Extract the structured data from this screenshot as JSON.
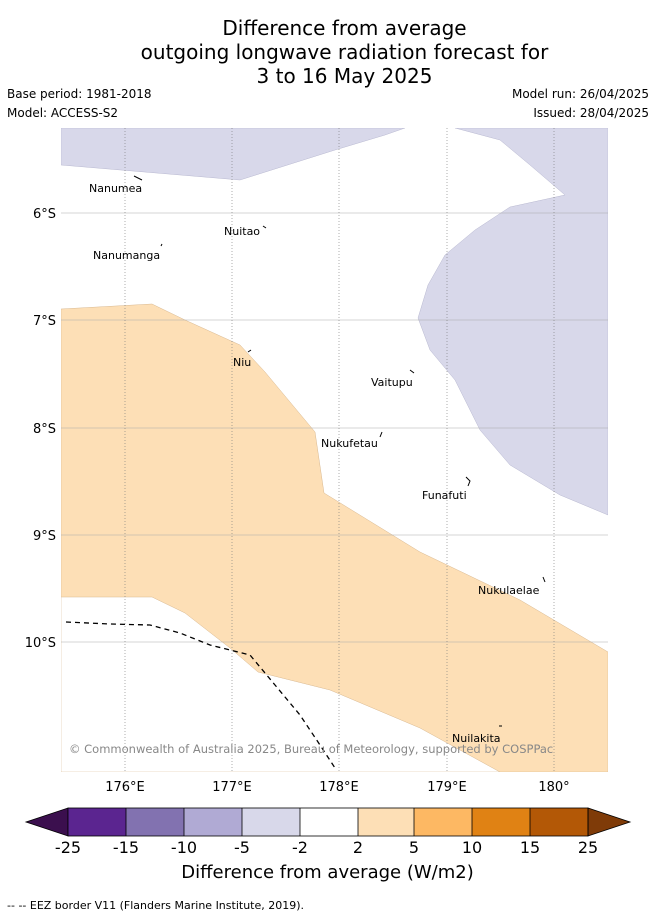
{
  "title": {
    "line1": "Difference from average",
    "line2": "outgoing longwave radiation forecast for",
    "line3": "3 to 16 May 2025"
  },
  "meta": {
    "base_period": "Base period: 1981-2018",
    "model": "Model: ACCESS-S2",
    "model_run": "Model run: 26/04/2025",
    "issued": "Issued: 28/04/2025"
  },
  "map": {
    "lon_ticks": [
      "176°E",
      "177°E",
      "178°E",
      "179°E",
      "180°"
    ],
    "lat_ticks": [
      "6°S",
      "7°S",
      "8°S",
      "9°S",
      "10°S"
    ],
    "copyright": "© Commonwealth of Australia 2025, Bureau of Meteorology, supported by COSPPac",
    "places": [
      {
        "name": "Nanumea"
      },
      {
        "name": "Nuitao"
      },
      {
        "name": "Nanumanga"
      },
      {
        "name": "Niu"
      },
      {
        "name": "Vaitupu"
      },
      {
        "name": "Nukufetau"
      },
      {
        "name": "Funafuti"
      },
      {
        "name": "Nukulaelae"
      },
      {
        "name": "Nuilakita"
      }
    ],
    "colors": {
      "anomaly_negative_light": "#d8d8ea",
      "anomaly_positive_light": "#fddfb6",
      "grid": "#888888"
    }
  },
  "colorbar": {
    "tick_labels": [
      "-25",
      "-15",
      "-10",
      "-5",
      "-2",
      "2",
      "5",
      "10",
      "15",
      "25"
    ],
    "colors": [
      "#3b0f4e",
      "#5b2590",
      "#8272b0",
      "#b0aad4",
      "#d8d8ea",
      "#ffffff",
      "#fddfb6",
      "#fdb863",
      "#e08214",
      "#b35806",
      "#7f3b08"
    ],
    "title": "Difference from average (W/m2)"
  },
  "legend": {
    "eez_label": "-- EEZ border V11 (Flanders Marine Institute, 2019)."
  }
}
